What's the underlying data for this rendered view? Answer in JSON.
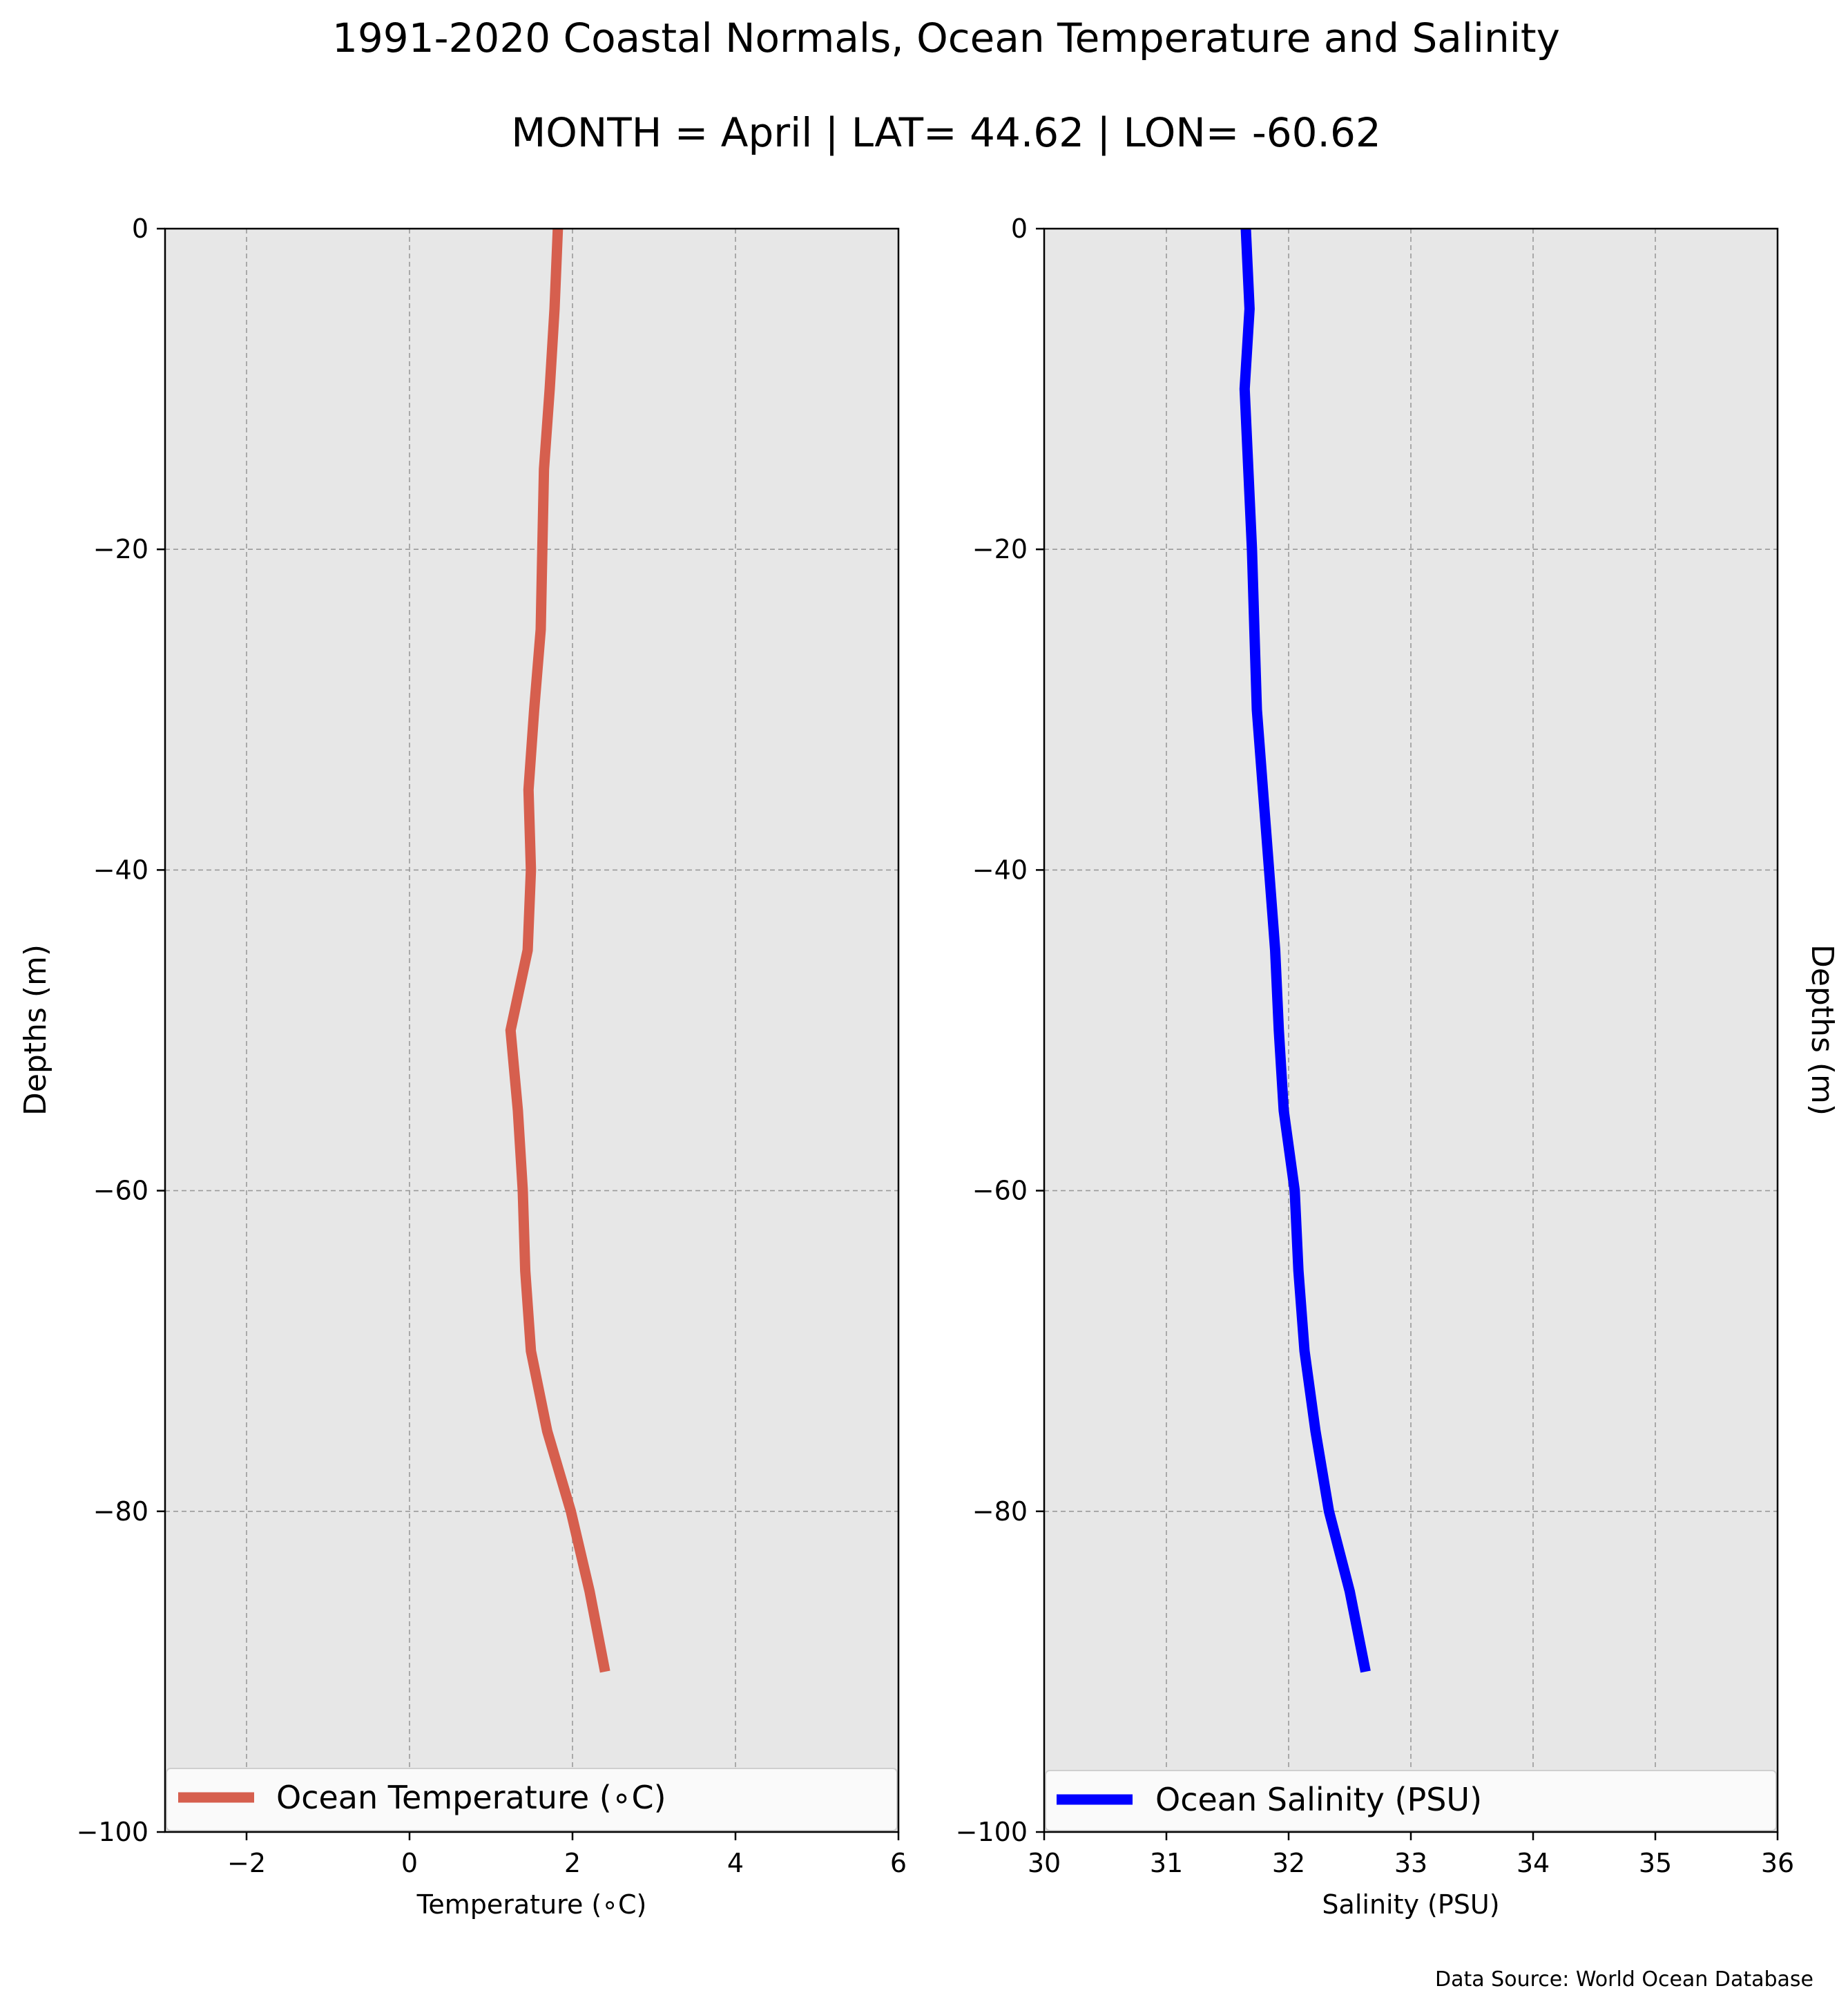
{
  "figure": {
    "title_line1": "1991-2020 Coastal Normals, Ocean Temperature and Salinity",
    "title_line2": "MONTH = April | LAT= 44.62 | LON= -60.62",
    "source": "Data Source: World Ocean Database",
    "plot_background": "#e7e7e7"
  },
  "chart_data": [
    {
      "type": "line",
      "xlabel": "Temperature ($^\\circ$C)",
      "xlabel_display": "Temperature (∘C)",
      "ylabel": "Depths (m)",
      "xlim": [
        -3,
        6
      ],
      "ylim": [
        -100,
        0
      ],
      "x_ticks": [
        -2,
        0,
        2,
        4,
        6
      ],
      "x_tick_labels": [
        "−2",
        "0",
        "2",
        "4",
        "6"
      ],
      "y_ticks": [
        0,
        -20,
        -40,
        -60,
        -80,
        -100
      ],
      "y_tick_labels": [
        "0",
        "−20",
        "−40",
        "−60",
        "−80",
        "−100"
      ],
      "grid": true,
      "legend_position": "lower-center",
      "series": [
        {
          "name": "Ocean Temperature (∘C)",
          "color": "#d65f4e",
          "depth": [
            0,
            -5,
            -10,
            -15,
            -20,
            -25,
            -30,
            -35,
            -40,
            -45,
            -50,
            -55,
            -60,
            -65,
            -70,
            -75,
            -80,
            -85,
            -90
          ],
          "values": [
            1.82,
            1.78,
            1.72,
            1.65,
            1.63,
            1.61,
            1.53,
            1.46,
            1.49,
            1.45,
            1.24,
            1.33,
            1.39,
            1.42,
            1.49,
            1.69,
            1.98,
            2.21,
            2.4
          ]
        }
      ]
    },
    {
      "type": "line",
      "xlabel": "Salinity (PSU)",
      "ylabel": "Depths (m)",
      "xlim": [
        30,
        36
      ],
      "ylim": [
        -100,
        0
      ],
      "x_ticks": [
        30,
        31,
        32,
        33,
        34,
        35,
        36
      ],
      "x_tick_labels": [
        "30",
        "31",
        "32",
        "33",
        "34",
        "35",
        "36"
      ],
      "y_ticks": [
        0,
        -20,
        -40,
        -60,
        -80,
        -100
      ],
      "y_tick_labels": [
        "0",
        "−20",
        "−40",
        "−60",
        "−80",
        "−100"
      ],
      "grid": true,
      "legend_position": "lower-center",
      "series": [
        {
          "name": "Ocean Salinity (PSU)",
          "color": "#0000ff",
          "depth": [
            0,
            -5,
            -10,
            -15,
            -20,
            -25,
            -30,
            -35,
            -40,
            -45,
            -50,
            -55,
            -60,
            -65,
            -70,
            -75,
            -80,
            -85,
            -90
          ],
          "values": [
            31.65,
            31.68,
            31.64,
            31.67,
            31.7,
            31.72,
            31.74,
            31.79,
            31.84,
            31.89,
            31.92,
            31.96,
            32.05,
            32.08,
            32.13,
            32.22,
            32.33,
            32.5,
            32.63
          ]
        }
      ]
    }
  ]
}
